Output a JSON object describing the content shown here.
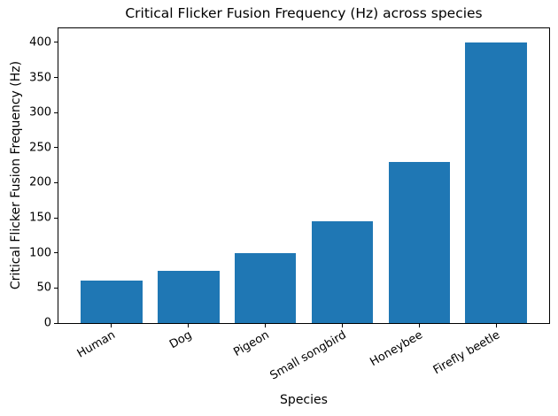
{
  "chart_data": {
    "type": "bar",
    "title": "Critical Flicker Fusion Frequency (Hz) across species",
    "xlabel": "Species",
    "ylabel": "Critical Flicker Fusion Frequency (Hz)",
    "categories": [
      "Human",
      "Dog",
      "Pigeon",
      "Small songbird",
      "Honeybee",
      "Firefly beetle"
    ],
    "values": [
      60,
      75,
      100,
      145,
      230,
      400
    ],
    "yticks": [
      0,
      50,
      100,
      150,
      200,
      250,
      300,
      350,
      400
    ],
    "ylim": [
      0,
      420
    ],
    "bar_color": "#1f77b4",
    "axis_color": "#000000",
    "bar_width_fraction": 0.8,
    "x_tick_rotation_deg": 30,
    "grid": false,
    "legend": "none"
  }
}
